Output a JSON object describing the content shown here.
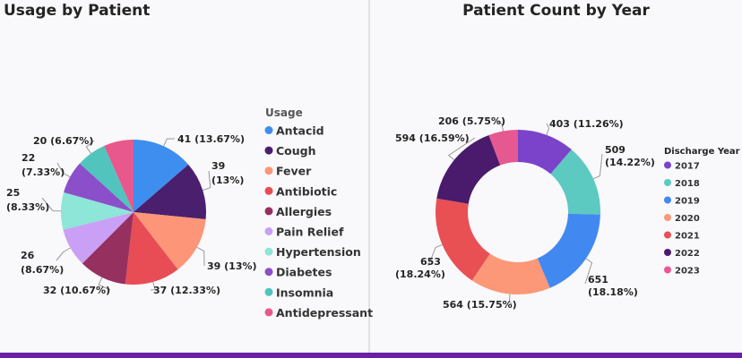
{
  "charts": [
    {
      "title": "Usage by Patient"
    },
    {
      "title": "Patient Count by Year"
    }
  ],
  "chart_data": [
    {
      "type": "pie",
      "title": "Usage by Patient",
      "legend_title": "Usage",
      "legend_position": "right",
      "categories": [
        "Antacid",
        "Cough",
        "Fever",
        "Antibiotic",
        "Allergies",
        "Pain Relief",
        "Hypertension",
        "Diabetes",
        "Insomnia",
        "Antidepressant"
      ],
      "values": [
        41,
        39,
        39,
        37,
        32,
        26,
        25,
        22,
        20,
        20
      ],
      "data_labels": [
        "41 (13.67%)",
        "39 (13%)",
        "39 (13%)",
        "37 (12.33%)",
        "32 (10.67%)",
        "26 (8.67%)",
        "25 (8.33%)",
        "22 (7.33%)",
        "20 (6.67%)",
        ""
      ],
      "colors": [
        "#3e8ef0",
        "#4a1f6e",
        "#fd9578",
        "#e84c55",
        "#96305f",
        "#c9a0f5",
        "#8de6d8",
        "#8c4fca",
        "#50c4bd",
        "#e9588d"
      ]
    },
    {
      "type": "donut",
      "title": "Patient Count by Year",
      "legend_title": "Discharge Year",
      "legend_position": "right",
      "categories": [
        "2017",
        "2018",
        "2019",
        "2020",
        "2021",
        "2022",
        "2023"
      ],
      "values": [
        403,
        509,
        651,
        564,
        653,
        594,
        206
      ],
      "data_labels": [
        "403 (11.26%)",
        "509 (14.22%)",
        "651 (18.18%)",
        "564 (15.75%)",
        "653 (18.24%)",
        "594 (16.59%)",
        "206 (5.75%)"
      ],
      "colors": [
        "#7b43c9",
        "#5ccac1",
        "#4189f0",
        "#fc9877",
        "#e85054",
        "#4a1a6c",
        "#e65990"
      ]
    }
  ]
}
